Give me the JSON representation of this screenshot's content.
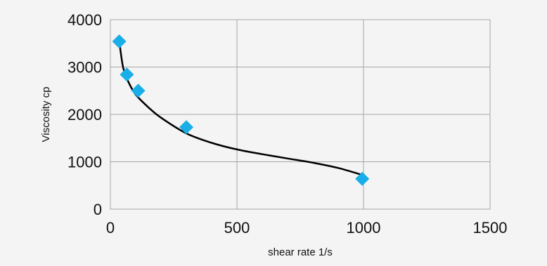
{
  "chart_data": {
    "type": "scatter",
    "title": "",
    "xlabel": "shear rate 1/s",
    "ylabel": "Viscosity cp",
    "xlim": [
      0,
      1500
    ],
    "ylim": [
      0,
      4000
    ],
    "x_ticks": [
      "0",
      "500",
      "1000",
      "1500"
    ],
    "y_ticks": [
      "0",
      "1000",
      "2000",
      "3000",
      "4000"
    ],
    "grid": true,
    "legend": "none",
    "series": [
      {
        "marker": "diamond",
        "color": "#1aaee8",
        "points": [
          {
            "x": 35,
            "y": 3540
          },
          {
            "x": 65,
            "y": 2840
          },
          {
            "x": 110,
            "y": 2500
          },
          {
            "x": 300,
            "y": 1730
          },
          {
            "x": 995,
            "y": 640
          }
        ]
      }
    ],
    "trendline": {
      "color": "#000000",
      "points": [
        {
          "x": 35,
          "y": 3550
        },
        {
          "x": 50,
          "y": 3000
        },
        {
          "x": 70,
          "y": 2700
        },
        {
          "x": 100,
          "y": 2420
        },
        {
          "x": 150,
          "y": 2150
        },
        {
          "x": 200,
          "y": 1930
        },
        {
          "x": 300,
          "y": 1600
        },
        {
          "x": 400,
          "y": 1400
        },
        {
          "x": 500,
          "y": 1260
        },
        {
          "x": 600,
          "y": 1160
        },
        {
          "x": 700,
          "y": 1070
        },
        {
          "x": 800,
          "y": 980
        },
        {
          "x": 900,
          "y": 870
        },
        {
          "x": 990,
          "y": 730
        }
      ]
    }
  }
}
